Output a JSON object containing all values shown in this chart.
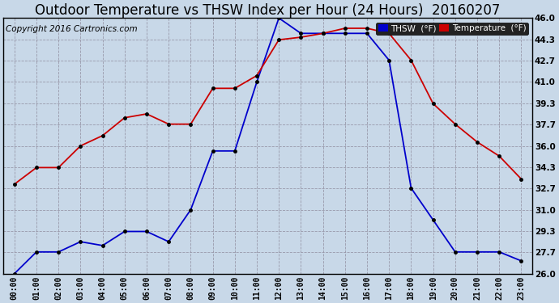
{
  "title": "Outdoor Temperature vs THSW Index per Hour (24 Hours)  20160207",
  "copyright": "Copyright 2016 Cartronics.com",
  "hours": [
    "00:00",
    "01:00",
    "02:00",
    "03:00",
    "04:00",
    "05:00",
    "06:00",
    "07:00",
    "08:00",
    "09:00",
    "10:00",
    "11:00",
    "12:00",
    "13:00",
    "14:00",
    "15:00",
    "16:00",
    "17:00",
    "18:00",
    "19:00",
    "20:00",
    "21:00",
    "22:00",
    "23:00"
  ],
  "thsw": [
    26.0,
    27.7,
    27.7,
    28.5,
    28.2,
    29.3,
    29.3,
    28.5,
    31.0,
    35.6,
    35.6,
    41.0,
    46.0,
    44.8,
    44.8,
    44.8,
    44.8,
    42.7,
    32.7,
    30.2,
    27.7,
    27.7,
    27.7,
    27.0
  ],
  "temperature": [
    33.0,
    34.3,
    34.3,
    36.0,
    36.8,
    38.2,
    38.5,
    37.7,
    37.7,
    40.5,
    40.5,
    41.5,
    44.3,
    44.5,
    44.8,
    45.2,
    45.2,
    44.8,
    42.7,
    39.3,
    37.7,
    36.3,
    35.2,
    33.4
  ],
  "thsw_color": "#0000cc",
  "temp_color": "#cc0000",
  "bg_color": "#c8d8e8",
  "plot_bg": "#c8d8e8",
  "grid_color": "#9999aa",
  "ylim_min": 26.0,
  "ylim_max": 46.0,
  "yticks": [
    26.0,
    27.7,
    29.3,
    31.0,
    32.7,
    34.3,
    36.0,
    37.7,
    39.3,
    41.0,
    42.7,
    44.3,
    46.0
  ],
  "legend_thsw_bg": "#0000cc",
  "legend_temp_bg": "#cc0000",
  "title_fontsize": 12,
  "copyright_fontsize": 7.5
}
